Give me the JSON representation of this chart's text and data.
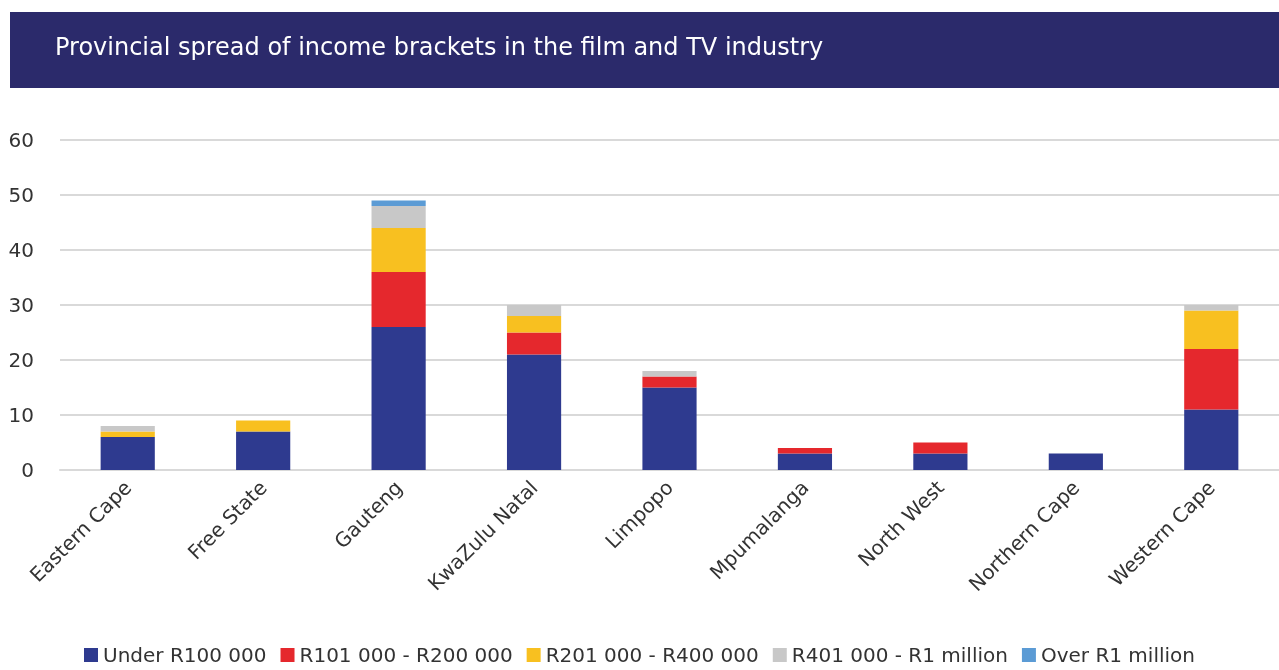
{
  "chart_data": {
    "type": "bar",
    "title": "Provincial spread of income brackets in the film and TV industry",
    "categories": [
      "Eastern Cape",
      "Free State",
      "Gauteng",
      "KwaZulu Natal",
      "Limpopo",
      "Mpumalanga",
      "North West",
      "Northern Cape",
      "Western Cape"
    ],
    "stacked": true,
    "series": [
      {
        "name": "Under R100 000",
        "color": "#2e3a8f",
        "values": [
          6,
          7,
          26,
          21,
          15,
          3,
          3,
          3,
          11
        ]
      },
      {
        "name": "R101 000 - R200 000",
        "color": "#e5282d",
        "values": [
          0,
          0,
          10,
          4,
          2,
          1,
          2,
          0,
          11
        ]
      },
      {
        "name": "R201 000 - R400 000",
        "color": "#f8c020",
        "values": [
          1,
          2,
          8,
          3,
          0,
          0,
          0,
          0,
          7
        ]
      },
      {
        "name": "R401 000 - R1 million",
        "color": "#c8c8c8",
        "values": [
          1,
          0,
          4,
          2,
          1,
          0,
          0,
          0,
          1
        ]
      },
      {
        "name": "Over R1 million",
        "color": "#5b9bd5",
        "values": [
          0,
          0,
          1,
          0,
          0,
          0,
          0,
          0,
          0
        ]
      }
    ],
    "ylim": [
      0,
      60
    ],
    "yticks": [
      0,
      10,
      20,
      30,
      40,
      50,
      60
    ],
    "grid": "y",
    "legend": "bottom"
  }
}
